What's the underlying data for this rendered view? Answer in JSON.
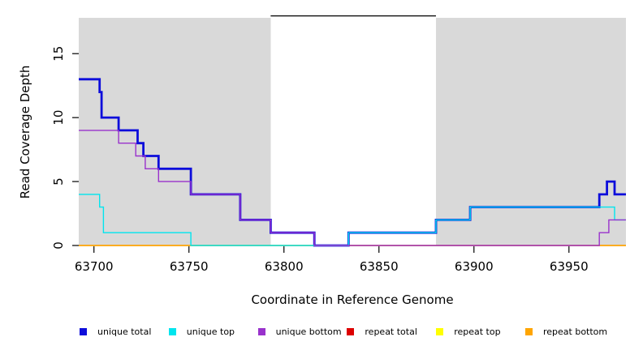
{
  "chart_data": {
    "type": "line",
    "subtype": "step-coverage-plot",
    "title": "",
    "xlabel": "Coordinate in Reference Genome",
    "ylabel": "Read Coverage Depth",
    "xlim": [
      63692,
      63980
    ],
    "ylim": [
      0,
      17.8
    ],
    "x_ticks": [
      63700,
      63750,
      63800,
      63850,
      63900,
      63950
    ],
    "y_ticks": [
      0,
      5,
      10,
      15
    ],
    "grid": false,
    "legend_position": "bottom",
    "panel_color": "#d9d9d9",
    "shaded_regions": [
      {
        "name": "unique-region-left",
        "x0": 63692,
        "x1": 63793,
        "color": "#d9d9d9"
      },
      {
        "name": "unique-region-right",
        "x0": 63880,
        "x1": 63980,
        "color": "#d9d9d9"
      }
    ],
    "annotations": [
      {
        "name": "repeat-region-top-line",
        "type": "hline-segment",
        "x0": 63793,
        "x1": 63880,
        "y": 17.95,
        "color": "#000000",
        "width": 1.2
      }
    ],
    "series": [
      {
        "name": "repeat total",
        "color": "#dd0000",
        "width": 1.2,
        "steps": [
          [
            63692,
            0
          ],
          [
            63980,
            0
          ]
        ]
      },
      {
        "name": "repeat top",
        "color": "#ffff00",
        "width": 1.2,
        "steps": [
          [
            63692,
            0
          ],
          [
            63980,
            0
          ]
        ]
      },
      {
        "name": "repeat bottom",
        "color": "#ffa500",
        "width": 1.4,
        "steps": [
          [
            63692,
            0
          ],
          [
            63980,
            0
          ]
        ]
      },
      {
        "name": "unique total",
        "color": "#0d0ddb",
        "width": 2.8,
        "steps": [
          [
            63692,
            13
          ],
          [
            63703,
            12
          ],
          [
            63704,
            10
          ],
          [
            63713,
            9
          ],
          [
            63723,
            8
          ],
          [
            63726,
            7
          ],
          [
            63734,
            6
          ],
          [
            63751,
            4
          ],
          [
            63777,
            2
          ],
          [
            63793,
            1
          ],
          [
            63816,
            0
          ],
          [
            63834,
            1
          ],
          [
            63880,
            2
          ],
          [
            63898,
            3
          ],
          [
            63966,
            4
          ],
          [
            63970,
            5
          ],
          [
            63974,
            4
          ],
          [
            63980,
            4
          ]
        ]
      },
      {
        "name": "unique top",
        "color": "#00e5ee",
        "width": 1.4,
        "steps": [
          [
            63692,
            4
          ],
          [
            63703,
            3
          ],
          [
            63705,
            1
          ],
          [
            63751,
            0
          ],
          [
            63834,
            1
          ],
          [
            63880,
            2
          ],
          [
            63898,
            3
          ],
          [
            63974,
            2
          ],
          [
            63980,
            2
          ]
        ]
      },
      {
        "name": "unique bottom",
        "color": "#9932cc",
        "width": 1.4,
        "steps": [
          [
            63692,
            9
          ],
          [
            63713,
            8
          ],
          [
            63722,
            7
          ],
          [
            63727,
            6
          ],
          [
            63734,
            5
          ],
          [
            63751,
            4
          ],
          [
            63777,
            2
          ],
          [
            63793,
            1
          ],
          [
            63816,
            0
          ],
          [
            63966,
            1
          ],
          [
            63971,
            2
          ],
          [
            63980,
            2
          ]
        ]
      }
    ],
    "legend": [
      {
        "label": "unique total",
        "color": "#0d0ddb"
      },
      {
        "label": "unique top",
        "color": "#00e5ee"
      },
      {
        "label": "unique bottom",
        "color": "#9932cc"
      },
      {
        "label": "repeat total",
        "color": "#dd0000"
      },
      {
        "label": "repeat top",
        "color": "#ffff00"
      },
      {
        "label": "repeat bottom",
        "color": "#ffa500"
      }
    ]
  }
}
